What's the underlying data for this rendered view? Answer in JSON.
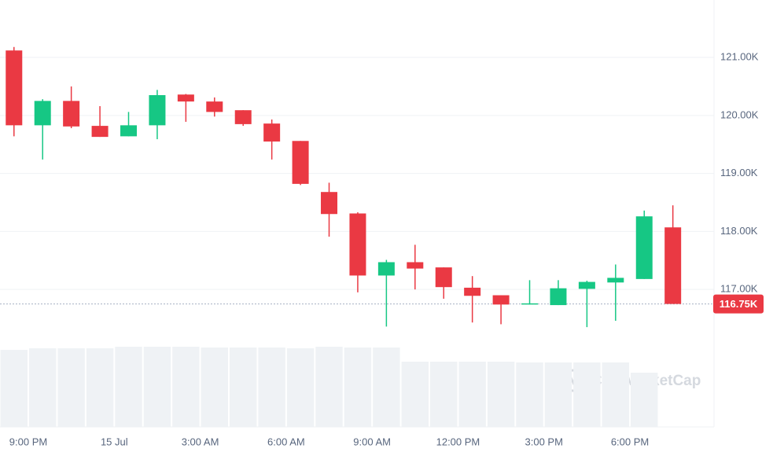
{
  "chart_data": {
    "type": "candlestick",
    "watermark": "CoinMarketCap",
    "categories": [
      null,
      "9:00 PM",
      null,
      null,
      "15 Jul",
      null,
      null,
      "3:00 AM",
      null,
      null,
      "6:00 AM",
      null,
      null,
      "9:00 AM",
      null,
      null,
      "12:00 PM",
      null,
      null,
      "3:00 PM",
      null,
      null,
      "6:00 PM",
      null
    ],
    "open": [
      121120,
      119830,
      120250,
      119820,
      119640,
      119830,
      120360,
      120240,
      120090,
      119860,
      119560,
      118680,
      118310,
      117240,
      117470,
      117380,
      117030,
      116900,
      116740,
      116730,
      117010,
      117120,
      117180,
      118070
    ],
    "high": [
      121180,
      120280,
      120500,
      120160,
      120060,
      120440,
      120370,
      120310,
      120090,
      119930,
      119560,
      118840,
      118330,
      117510,
      117770,
      117380,
      117230,
      116900,
      117160,
      117160,
      117150,
      117430,
      118360,
      118450
    ],
    "low": [
      119640,
      119240,
      119780,
      119630,
      119640,
      119590,
      119890,
      119980,
      119820,
      119240,
      118800,
      117910,
      116950,
      116360,
      117000,
      116840,
      116430,
      116400,
      116740,
      116730,
      116350,
      116460,
      117180,
      116750
    ],
    "close": [
      119830,
      120250,
      119810,
      119630,
      119830,
      120350,
      120240,
      120060,
      119850,
      119550,
      118820,
      118300,
      117240,
      117470,
      117360,
      117040,
      116890,
      116740,
      116760,
      117020,
      117130,
      117200,
      118260,
      116750
    ],
    "volume": [
      98,
      100,
      100,
      100,
      102,
      102,
      102,
      101,
      101,
      101,
      100,
      102,
      101,
      101,
      83,
      83,
      83,
      83,
      82,
      82,
      82,
      82,
      69,
      null
    ],
    "up_color": "#16c784",
    "down_color": "#ea3943",
    "volume_color": "#eff2f5",
    "ylim": [
      114630,
      121990
    ],
    "yticks": [
      {
        "value": 117000,
        "label": "117.00K"
      },
      {
        "value": 118000,
        "label": "118.00K"
      },
      {
        "value": 119000,
        "label": "119.00K"
      },
      {
        "value": 120000,
        "label": "120.00K"
      },
      {
        "value": 121000,
        "label": "121.00K"
      }
    ],
    "current_price": {
      "value": 116750,
      "label": "116.75K"
    },
    "grid": true
  }
}
